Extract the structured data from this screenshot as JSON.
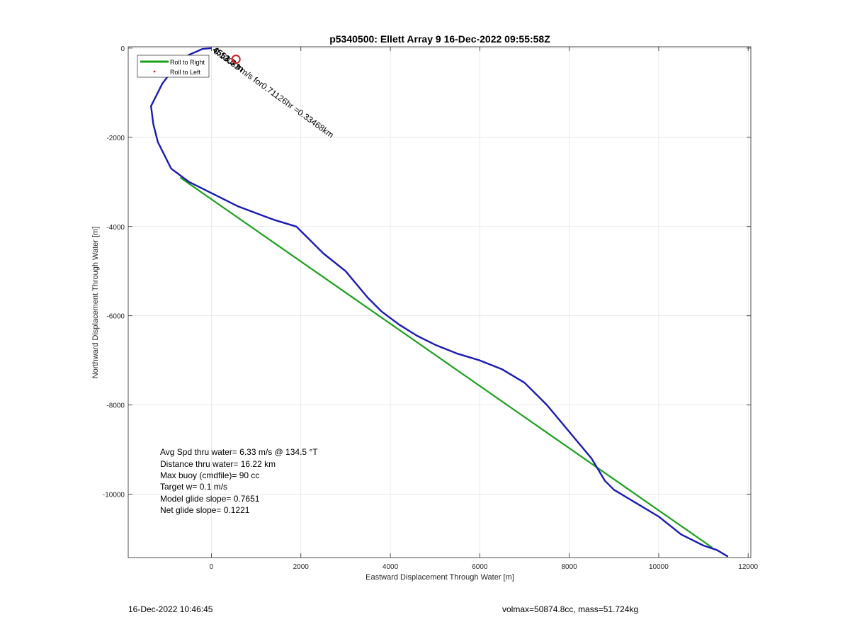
{
  "chart_data": {
    "type": "line",
    "title": "p5340500: Ellett Array 9 16-Dec-2022 09:55:58Z",
    "xlabel": "Eastward Displacement Through Water [m]",
    "ylabel": "Northward Displacement Through Water [m]",
    "xlim": [
      -1860,
      12060
    ],
    "ylim": [
      -11420,
      30
    ],
    "xticks": [
      0,
      2000,
      4000,
      6000,
      8000,
      10000,
      12000
    ],
    "xtick_labels": [
      "0",
      "2000",
      "4000",
      "6000",
      "8000",
      "10000",
      "12000"
    ],
    "yticks": [
      0,
      -2000,
      -4000,
      -6000,
      -8000,
      -10000
    ],
    "ytick_labels": [
      "0",
      "-2000",
      "-4000",
      "-6000",
      "-8000",
      "-10000"
    ],
    "grid": true,
    "legend": {
      "placement": "top-left",
      "entries": [
        {
          "label": "Roll to Right",
          "color": "#1aa01a",
          "marker": "line"
        },
        {
          "label": "Roll to Left",
          "color": "#d92020",
          "marker": "dot"
        }
      ]
    },
    "series": [
      {
        "color": "#1a1ab4",
        "x": [
          0,
          -200,
          -500,
          -800,
          -1100,
          -1300,
          -1350,
          -1300,
          -1200,
          -1000,
          -900,
          -700,
          -500,
          -200,
          200,
          600,
          1000,
          1400,
          1900,
          2100,
          2500,
          3000,
          3250,
          3500,
          3800,
          4200,
          4600,
          5000,
          5500,
          6000,
          6500,
          7000,
          7500,
          8000,
          8500,
          8800,
          9000,
          9500,
          10000,
          10500,
          11000,
          11300,
          11550
        ],
        "y": [
          0,
          -20,
          -150,
          -400,
          -800,
          -1200,
          -1300,
          -1700,
          -2100,
          -2500,
          -2700,
          -2850,
          -3000,
          -3150,
          -3350,
          -3550,
          -3700,
          -3850,
          -4000,
          -4200,
          -4600,
          -5000,
          -5300,
          -5600,
          -5900,
          -6200,
          -6450,
          -6650,
          -6850,
          -7000,
          -7200,
          -7500,
          -8000,
          -8600,
          -9200,
          -9700,
          -9900,
          -10200,
          -10500,
          -10900,
          -11150,
          -11250,
          -11400
        ]
      },
      {
        "name": "Roll to Right",
        "color": "#1aa01a",
        "x": [
          -700,
          11200
        ],
        "y": [
          -2900,
          -11200
        ]
      }
    ],
    "annotations": [
      {
        "text": "Avg Spd thru water=  6.33 m/s @ 134.5 °T"
      },
      {
        "text": "Distance thru water= 16.22 km"
      },
      {
        "text": "Max buoy (cmdfile)= 90 cc"
      },
      {
        "text": "Target w= 0.1 m/s"
      },
      {
        "text": "Model glide slope= 0.7651"
      },
      {
        "text": "Net glide slope= 0.1221"
      }
    ],
    "rotated_label": {
      "text": "0.13083 m/s for0.71126hr =0.33468km",
      "x": 0,
      "y": 0,
      "angle_deg": 36
    },
    "overlap_label": "4553.5 m",
    "start_marker": {
      "x": 550,
      "y": -250,
      "color": "#cc1f1f"
    }
  },
  "footer": {
    "timestamp": "16-Dec-2022 10:46:45",
    "stats": "volmax=50874.8cc, mass=51.724kg"
  }
}
